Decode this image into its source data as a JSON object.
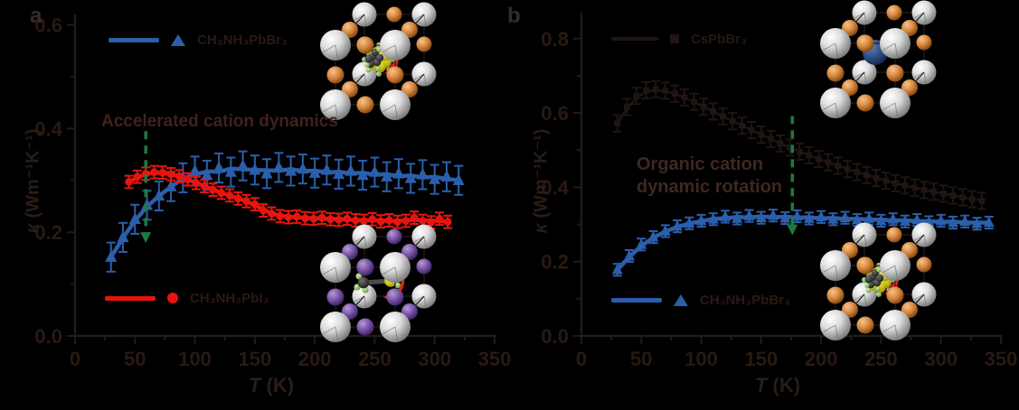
{
  "figure": {
    "background": "#000000",
    "text_color": "#2a1c16",
    "axis_color": "#241a15"
  },
  "chart_data": [
    {
      "panel_label": "a",
      "type": "scatter",
      "xlabel_var": "T",
      "xlabel_unit": " (K)",
      "ylabel_var": "κ",
      "ylabel_unit": " (Wm⁻¹K⁻¹)",
      "xlim": [
        0,
        350
      ],
      "ylim": [
        0,
        0.62
      ],
      "x_major_ticks": [
        0,
        50,
        100,
        150,
        200,
        250,
        300,
        350
      ],
      "x_minor_step": 25,
      "y_major_ticks": [
        0.0,
        0.2,
        0.4,
        0.6
      ],
      "y_minor_step": 0.1,
      "annotation_lines": [
        "Accelerated cation dynamics"
      ],
      "annotation_color": "#3f221e",
      "arrow": {
        "T": 59,
        "k_top": 0.395,
        "k_bottom": 0.175,
        "color": "#1e7a40"
      },
      "series": [
        {
          "name": "CH₃NH₃PbBr₃",
          "marker": "triangle",
          "color": "#2b5fac",
          "err": 0.028,
          "line_width": 4.5,
          "marker_size": 6.5,
          "T": [
            30,
            40,
            50,
            60,
            70,
            80,
            90,
            100,
            110,
            120,
            130,
            140,
            150,
            160,
            170,
            180,
            190,
            200,
            210,
            220,
            230,
            240,
            250,
            260,
            270,
            280,
            290,
            300,
            310,
            320
          ],
          "k": [
            0.152,
            0.19,
            0.225,
            0.252,
            0.27,
            0.288,
            0.305,
            0.318,
            0.31,
            0.324,
            0.316,
            0.328,
            0.32,
            0.313,
            0.325,
            0.318,
            0.322,
            0.314,
            0.32,
            0.312,
            0.318,
            0.31,
            0.316,
            0.307,
            0.313,
            0.304,
            0.311,
            0.302,
            0.307,
            0.3
          ]
        },
        {
          "name": "CH₃NH₃PbI₃",
          "marker": "circle",
          "color": "#e8150e",
          "err": 0.012,
          "line_width": 4.5,
          "marker_size": 4.3,
          "T": [
            45,
            52,
            59,
            66,
            73,
            80,
            87,
            94,
            101,
            108,
            115,
            122,
            129,
            136,
            143,
            150,
            157,
            164,
            171,
            178,
            185,
            192,
            199,
            206,
            213,
            220,
            227,
            234,
            241,
            248,
            255,
            262,
            269,
            276,
            283,
            290,
            297,
            304,
            311
          ],
          "k": [
            0.297,
            0.307,
            0.313,
            0.316,
            0.315,
            0.312,
            0.308,
            0.302,
            0.295,
            0.289,
            0.282,
            0.276,
            0.271,
            0.265,
            0.26,
            0.254,
            0.242,
            0.236,
            0.231,
            0.229,
            0.23,
            0.227,
            0.226,
            0.228,
            0.225,
            0.224,
            0.226,
            0.223,
            0.222,
            0.225,
            0.221,
            0.223,
            0.22,
            0.222,
            0.228,
            0.222,
            0.219,
            0.226,
            0.22
          ]
        }
      ],
      "insets": [
        {
          "position": "top-right",
          "structure": "perovskite-cell",
          "halide": "orange",
          "center": "rotating-cation"
        },
        {
          "position": "bottom-right",
          "structure": "perovskite-cell",
          "halide": "purple",
          "center": "ordered-cation"
        }
      ]
    },
    {
      "panel_label": "b",
      "type": "scatter",
      "xlabel_var": "T",
      "xlabel_unit": " (K)",
      "ylabel_var": "κ",
      "ylabel_unit": " (Wm⁻¹K⁻¹)",
      "xlim": [
        0,
        350
      ],
      "ylim": [
        0,
        0.87
      ],
      "x_major_ticks": [
        0,
        50,
        100,
        150,
        200,
        250,
        300,
        350
      ],
      "x_minor_step": 25,
      "y_major_ticks": [
        0.0,
        0.2,
        0.4,
        0.6,
        0.8
      ],
      "y_minor_step": 0.1,
      "annotation_lines": [
        "Organic cation",
        "dynamic rotation"
      ],
      "annotation_color": "#3e2722",
      "arrow": {
        "T": 176,
        "k_top": 0.592,
        "k_bottom": 0.265,
        "color": "#1e7a40"
      },
      "series": [
        {
          "name": "CsPbBr₃",
          "marker": "square",
          "color": "#1f1512",
          "err": 0.022,
          "line_width": 2.5,
          "marker_size": 3.4,
          "T": [
            30,
            38,
            46,
            54,
            62,
            70,
            78,
            86,
            94,
            102,
            110,
            118,
            126,
            134,
            142,
            150,
            158,
            166,
            174,
            182,
            190,
            198,
            206,
            214,
            222,
            230,
            238,
            246,
            254,
            262,
            270,
            278,
            286,
            294,
            302,
            310,
            318,
            326,
            334
          ],
          "k": [
            0.572,
            0.616,
            0.646,
            0.661,
            0.664,
            0.66,
            0.652,
            0.642,
            0.63,
            0.617,
            0.604,
            0.591,
            0.578,
            0.566,
            0.554,
            0.542,
            0.53,
            0.518,
            0.507,
            0.496,
            0.486,
            0.476,
            0.467,
            0.458,
            0.449,
            0.441,
            0.433,
            0.425,
            0.418,
            0.411,
            0.405,
            0.399,
            0.393,
            0.388,
            0.383,
            0.378,
            0.373,
            0.368,
            0.364
          ]
        },
        {
          "name": "CH₃NH₃PbBr₃",
          "marker": "triangle",
          "color": "#2b5fac",
          "err": 0.016,
          "line_width": 4.5,
          "marker_size": 6,
          "T": [
            30,
            40,
            50,
            60,
            70,
            80,
            90,
            100,
            110,
            120,
            130,
            140,
            150,
            160,
            170,
            180,
            190,
            200,
            210,
            220,
            230,
            240,
            250,
            260,
            270,
            280,
            290,
            300,
            310,
            320,
            330,
            340
          ],
          "k": [
            0.178,
            0.215,
            0.246,
            0.266,
            0.282,
            0.295,
            0.303,
            0.31,
            0.314,
            0.321,
            0.316,
            0.323,
            0.318,
            0.324,
            0.317,
            0.322,
            0.316,
            0.32,
            0.314,
            0.318,
            0.312,
            0.316,
            0.31,
            0.314,
            0.308,
            0.312,
            0.306,
            0.31,
            0.305,
            0.308,
            0.302,
            0.305
          ]
        }
      ],
      "insets": [
        {
          "position": "top-right",
          "structure": "perovskite-cell",
          "halide": "orange",
          "center": "cs-atom"
        },
        {
          "position": "bottom-right",
          "structure": "perovskite-cell",
          "halide": "orange",
          "center": "rotating-cation"
        }
      ]
    }
  ]
}
